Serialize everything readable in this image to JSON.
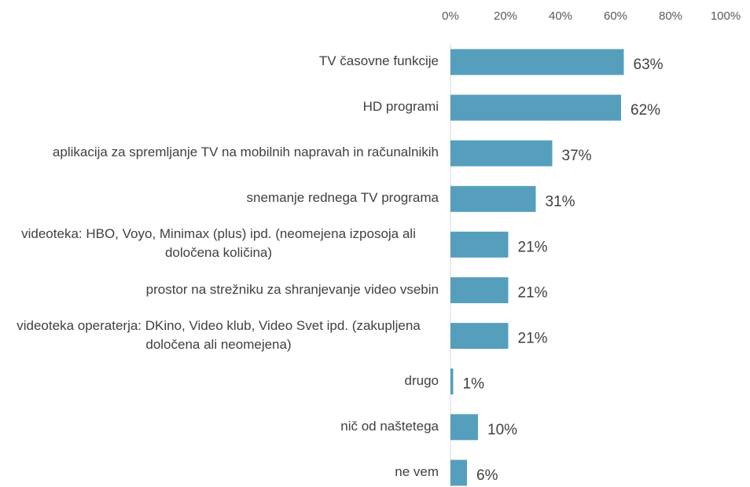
{
  "chart_data": {
    "type": "bar",
    "orientation": "horizontal",
    "categories": [
      "TV časovne funkcije",
      "HD programi",
      "aplikacija za spremljanje TV na mobilnih napravah in računalnikih",
      "snemanje rednega TV programa",
      "videoteka: HBO, Voyo, Minimax (plus) ipd. (neomejena izposoja ali določena količina)",
      "prostor na strežniku za shranjevanje video vsebin",
      "videoteka operaterja: DKino, Video klub, Video Svet ipd. (zakupljena določena ali neomejena)",
      "drugo",
      "nič od naštetega",
      "ne vem"
    ],
    "values": [
      63,
      62,
      37,
      31,
      21,
      21,
      21,
      1,
      10,
      6
    ],
    "value_labels": [
      "63%",
      "62%",
      "37%",
      "31%",
      "21%",
      "21%",
      "21%",
      "1%",
      "10%",
      "6%"
    ],
    "color": "#559fbd",
    "xlim": [
      0,
      100
    ],
    "xticks": [
      {
        "value": 0,
        "label": "0%"
      },
      {
        "value": 20,
        "label": "20%"
      },
      {
        "value": 40,
        "label": "40%"
      },
      {
        "value": 60,
        "label": "60%"
      },
      {
        "value": 80,
        "label": "80%"
      },
      {
        "value": 100,
        "label": "100%"
      }
    ],
    "grid": false
  }
}
